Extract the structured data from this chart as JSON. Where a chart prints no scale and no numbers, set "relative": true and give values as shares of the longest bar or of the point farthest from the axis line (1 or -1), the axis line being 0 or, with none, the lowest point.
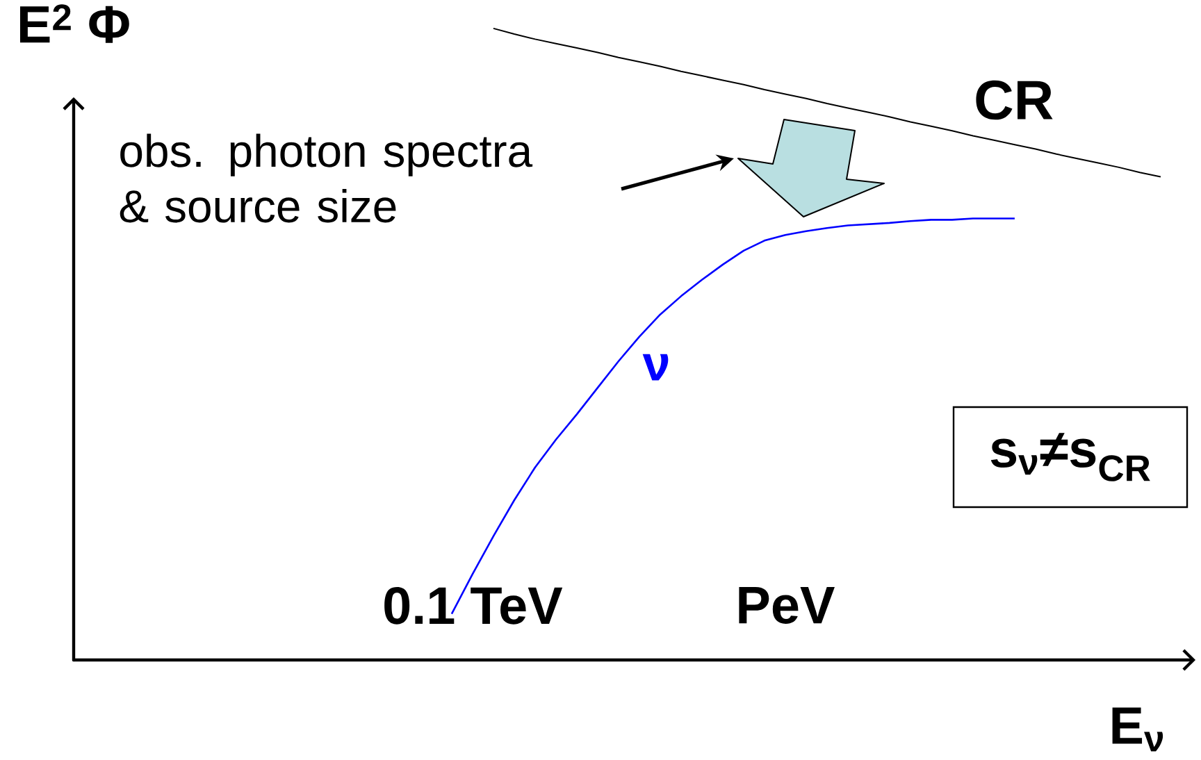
{
  "chart_data": {
    "type": "line",
    "relative": true,
    "marker": "none",
    "xlabel": "E$_{ν}$",
    "ylabel": "E$^{2}$ Φ",
    "categories": [
      null,
      "0.1 TeV",
      null,
      null,
      null,
      null,
      null,
      null,
      null,
      null,
      null,
      null,
      null,
      null,
      null,
      null,
      "PeV",
      null,
      null,
      null,
      null,
      null,
      null,
      null,
      null,
      null,
      null,
      null,
      null,
      null,
      null,
      null,
      null,
      null,
      null
    ],
    "annotations": [
      "obs. photon spectra & source size",
      "s$_{ν}$≠s$_{CR}$"
    ],
    "series": [
      {
        "name": "ν",
        "color": "#0000ff",
        "values": [
          0.073,
          0.136,
          0.196,
          0.253,
          0.305,
          0.349,
          0.389,
          0.431,
          0.473,
          0.512,
          0.547,
          0.576,
          0.602,
          0.626,
          0.648,
          0.664,
          0.673,
          0.679,
          0.684,
          0.688,
          0.69,
          0.692,
          0.695,
          0.697,
          0.697,
          0.699,
          0.699,
          0.699,
          null,
          null,
          null,
          null,
          null,
          null,
          null
        ]
      },
      {
        "name": "CR",
        "color": "#000000",
        "values": [
          null,
          null,
          1.0,
          0.991,
          0.983,
          0.976,
          0.969,
          0.962,
          0.954,
          0.947,
          0.94,
          0.932,
          0.925,
          0.918,
          0.911,
          0.903,
          0.896,
          0.889,
          0.881,
          0.874,
          0.867,
          0.86,
          0.852,
          0.845,
          0.838,
          0.83,
          0.823,
          0.816,
          0.809,
          0.801,
          0.794,
          0.787,
          0.78,
          0.772,
          0.765
        ]
      }
    ]
  }
}
